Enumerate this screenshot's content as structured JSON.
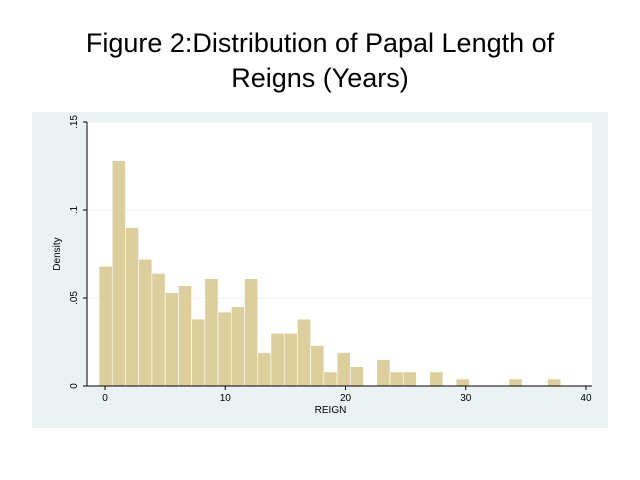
{
  "title_lines": [
    "Figure 2:Distribution of Papal Length of",
    "Reigns (Years)"
  ],
  "chart_data": {
    "type": "bar",
    "title": "Figure 2:Distribution of Papal Length of Reigns (Years)",
    "xlabel": "REIGN",
    "ylabel": "Density",
    "bin_width": 1.1,
    "bins": [
      {
        "start": -0.5,
        "density": 0.068
      },
      {
        "start": 0.6,
        "density": 0.128
      },
      {
        "start": 1.7,
        "density": 0.09
      },
      {
        "start": 2.8,
        "density": 0.072
      },
      {
        "start": 3.9,
        "density": 0.064
      },
      {
        "start": 5.0,
        "density": 0.053
      },
      {
        "start": 6.1,
        "density": 0.057
      },
      {
        "start": 7.2,
        "density": 0.038
      },
      {
        "start": 8.3,
        "density": 0.061
      },
      {
        "start": 9.4,
        "density": 0.042
      },
      {
        "start": 10.5,
        "density": 0.045
      },
      {
        "start": 11.6,
        "density": 0.061
      },
      {
        "start": 12.7,
        "density": 0.019
      },
      {
        "start": 13.8,
        "density": 0.03
      },
      {
        "start": 14.9,
        "density": 0.03
      },
      {
        "start": 16.0,
        "density": 0.038
      },
      {
        "start": 17.1,
        "density": 0.023
      },
      {
        "start": 18.2,
        "density": 0.008
      },
      {
        "start": 19.3,
        "density": 0.019
      },
      {
        "start": 20.4,
        "density": 0.011
      },
      {
        "start": 22.6,
        "density": 0.015
      },
      {
        "start": 23.7,
        "density": 0.008
      },
      {
        "start": 24.8,
        "density": 0.008
      },
      {
        "start": 27.0,
        "density": 0.008
      },
      {
        "start": 29.2,
        "density": 0.004
      },
      {
        "start": 33.6,
        "density": 0.004
      },
      {
        "start": 36.8,
        "density": 0.004
      }
    ],
    "xlim": [
      -1.5,
      40.5
    ],
    "ylim": [
      0,
      0.15
    ],
    "xticks": [
      0,
      10,
      20,
      30,
      40
    ],
    "xtick_labels": [
      "0",
      "10",
      "20",
      "30",
      "40"
    ],
    "yticks": [
      0,
      0.05,
      0.1,
      0.15
    ],
    "ytick_labels": [
      "0",
      ".05",
      ".1",
      ".15"
    ],
    "grid": true,
    "bar_color": "#dccf9c",
    "bar_edge_color": "#ffffff",
    "panel_color": "#eaf2f3",
    "plot_color": "#ffffff",
    "grid_color": "#eaf2f3"
  }
}
